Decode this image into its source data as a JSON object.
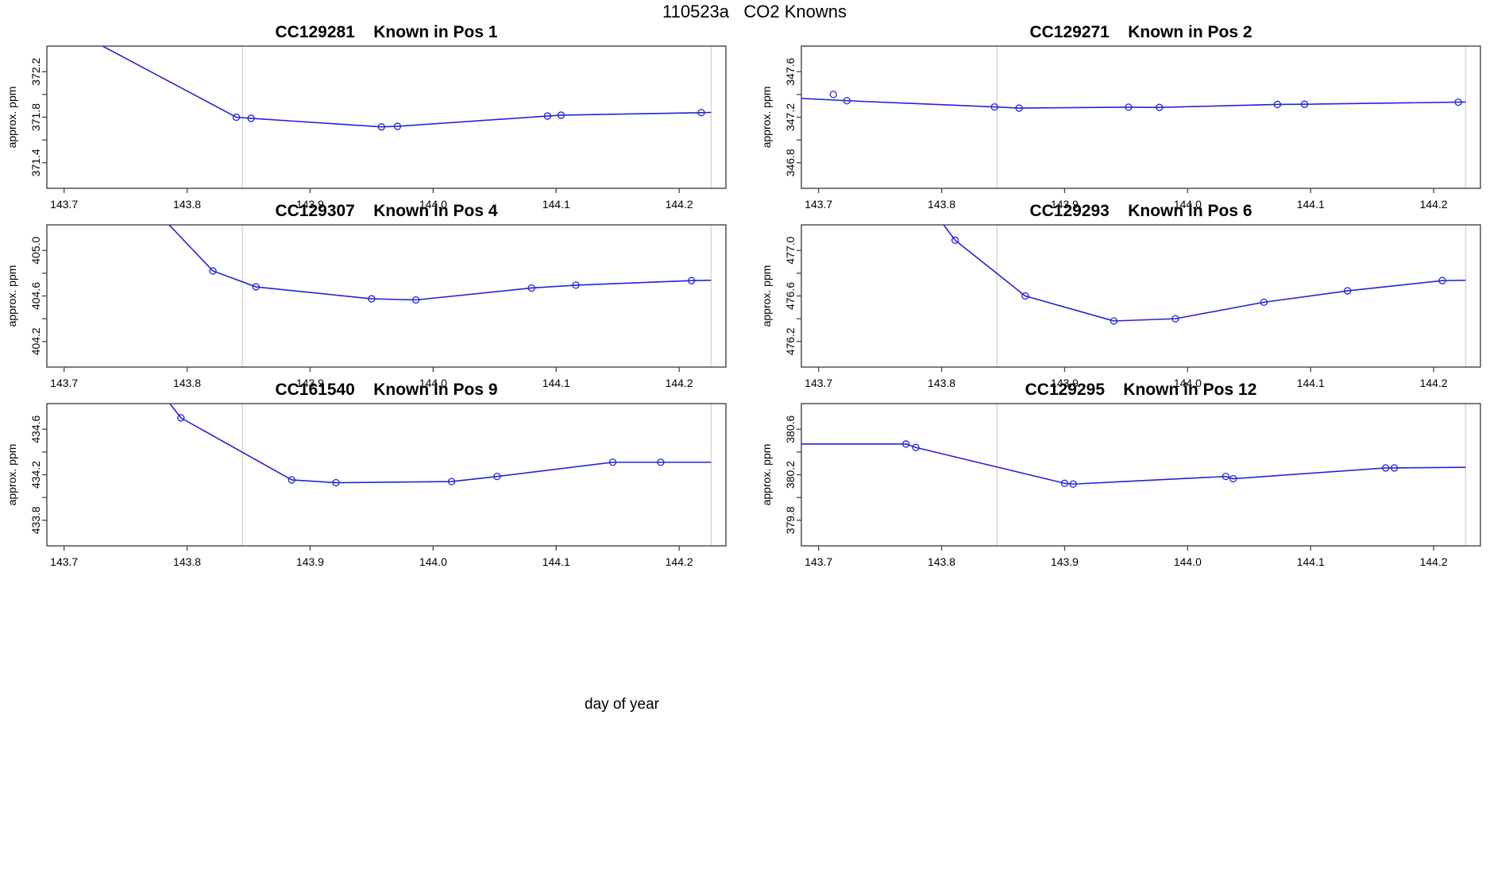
{
  "main_title": "110523a   CO2 Knowns",
  "x_axis_label": "day of year",
  "colors": {
    "line": "#2323dc",
    "vline": "#d6d6d6",
    "axis": "#454545",
    "text": "#000000"
  },
  "chart_data": [
    {
      "type": "line",
      "title_id": "CC129281",
      "title_pos": "Known in Pos 1",
      "ylabel": "approx. ppm",
      "xlim": [
        143.686,
        144.238
      ],
      "ylim": [
        371.175,
        372.425
      ],
      "xticks": [
        143.7,
        143.8,
        143.9,
        144.0,
        144.1,
        144.2
      ],
      "yticks": [
        371.4,
        371.8,
        372.2
      ],
      "yticks_minor": [
        371.6,
        372.0
      ],
      "vlines": [
        143.845,
        144.226
      ],
      "points": [
        [
          143.72,
          372.49,
          0
        ],
        [
          143.84,
          371.8,
          1
        ],
        [
          143.852,
          371.79,
          1
        ],
        [
          143.958,
          371.715,
          1
        ],
        [
          143.971,
          371.72,
          1
        ],
        [
          144.093,
          371.81,
          1
        ],
        [
          144.104,
          371.818,
          1
        ],
        [
          144.218,
          371.84,
          1
        ],
        [
          144.226,
          371.842,
          0
        ]
      ],
      "isolated_points": []
    },
    {
      "type": "line",
      "title_id": "CC129271",
      "title_pos": "Known in Pos 2",
      "ylabel": "approx. ppm",
      "xlim": [
        143.686,
        144.238
      ],
      "ylim": [
        346.575,
        347.825
      ],
      "xticks": [
        143.7,
        143.8,
        143.9,
        144.0,
        144.1,
        144.2
      ],
      "yticks": [
        346.8,
        347.2,
        347.6
      ],
      "yticks_minor": [
        347.0,
        347.4
      ],
      "vlines": [
        143.845,
        144.226
      ],
      "points": [
        [
          143.686,
          347.365,
          0
        ],
        [
          143.723,
          347.345,
          1
        ],
        [
          143.843,
          347.29,
          1
        ],
        [
          143.863,
          347.28,
          1
        ],
        [
          143.952,
          347.288,
          1
        ],
        [
          143.977,
          347.286,
          1
        ],
        [
          144.073,
          347.312,
          1
        ],
        [
          144.095,
          347.314,
          1
        ],
        [
          144.22,
          347.332,
          1
        ],
        [
          144.226,
          347.333,
          0
        ]
      ],
      "isolated_points": [
        [
          143.712,
          347.4
        ]
      ]
    },
    {
      "type": "line",
      "title_id": "CC129307",
      "title_pos": "Known in Pos 4",
      "ylabel": "approx. ppm",
      "xlim": [
        143.686,
        144.238
      ],
      "ylim": [
        403.975,
        405.225
      ],
      "xticks": [
        143.7,
        143.8,
        143.9,
        144.0,
        144.1,
        144.2
      ],
      "yticks": [
        404.2,
        404.6,
        405.0
      ],
      "yticks_minor": [
        404.4,
        404.8
      ],
      "vlines": [
        143.845,
        144.226
      ],
      "points": [
        [
          143.77,
          405.4,
          0
        ],
        [
          143.821,
          404.82,
          1
        ],
        [
          143.856,
          404.68,
          1
        ],
        [
          143.95,
          404.575,
          1
        ],
        [
          143.986,
          404.565,
          1
        ],
        [
          144.08,
          404.67,
          1
        ],
        [
          144.116,
          404.695,
          1
        ],
        [
          144.21,
          404.735,
          1
        ],
        [
          144.226,
          404.738,
          0
        ]
      ],
      "isolated_points": []
    },
    {
      "type": "line",
      "title_id": "CC129293",
      "title_pos": "Known in Pos 6",
      "ylabel": "approx. ppm",
      "xlim": [
        143.686,
        144.238
      ],
      "ylim": [
        475.975,
        477.225
      ],
      "xticks": [
        143.7,
        143.8,
        143.9,
        144.0,
        144.1,
        144.2
      ],
      "yticks": [
        476.2,
        476.6,
        477.0
      ],
      "yticks_minor": [
        476.4,
        476.8
      ],
      "vlines": [
        143.845,
        144.226
      ],
      "points": [
        [
          143.793,
          477.35,
          0
        ],
        [
          143.811,
          477.09,
          1
        ],
        [
          143.868,
          476.6,
          1
        ],
        [
          143.94,
          476.38,
          1
        ],
        [
          143.99,
          476.4,
          1
        ],
        [
          144.062,
          476.545,
          1
        ],
        [
          144.13,
          476.645,
          1
        ],
        [
          144.207,
          476.735,
          1
        ],
        [
          144.226,
          476.738,
          0
        ]
      ],
      "isolated_points": []
    },
    {
      "type": "line",
      "title_id": "CC161540",
      "title_pos": "Known in Pos 9",
      "ylabel": "approx. ppm",
      "xlim": [
        143.686,
        144.238
      ],
      "ylim": [
        433.575,
        434.825
      ],
      "xticks": [
        143.7,
        143.8,
        143.9,
        144.0,
        144.1,
        144.2
      ],
      "yticks": [
        433.8,
        434.2,
        434.6
      ],
      "yticks_minor": [
        434.0,
        434.4
      ],
      "vlines": [
        143.845,
        144.226
      ],
      "points": [
        [
          143.777,
          434.95,
          0
        ],
        [
          143.795,
          434.7,
          1
        ],
        [
          143.885,
          434.155,
          1
        ],
        [
          143.921,
          434.13,
          1
        ],
        [
          144.015,
          434.14,
          1
        ],
        [
          144.052,
          434.185,
          1
        ],
        [
          144.146,
          434.31,
          1
        ],
        [
          144.185,
          434.31,
          1
        ],
        [
          144.226,
          434.31,
          0
        ]
      ],
      "isolated_points": []
    },
    {
      "type": "line",
      "title_id": "CC129295",
      "title_pos": "Known in Pos 12",
      "ylabel": "approx. ppm",
      "xlim": [
        143.686,
        144.238
      ],
      "ylim": [
        379.575,
        380.825
      ],
      "xticks": [
        143.7,
        143.8,
        143.9,
        144.0,
        144.1,
        144.2
      ],
      "yticks": [
        379.8,
        380.2,
        380.6
      ],
      "yticks_minor": [
        380.0,
        380.4
      ],
      "vlines": [
        143.845,
        144.226
      ],
      "points": [
        [
          143.686,
          380.47,
          0
        ],
        [
          143.771,
          380.47,
          1
        ],
        [
          143.779,
          380.44,
          1
        ],
        [
          143.9,
          380.125,
          1
        ],
        [
          143.907,
          380.118,
          1
        ],
        [
          144.031,
          380.185,
          1
        ],
        [
          144.037,
          380.165,
          1
        ],
        [
          144.161,
          380.26,
          1
        ],
        [
          144.168,
          380.26,
          1
        ],
        [
          144.226,
          380.265,
          0
        ]
      ],
      "isolated_points": []
    }
  ]
}
